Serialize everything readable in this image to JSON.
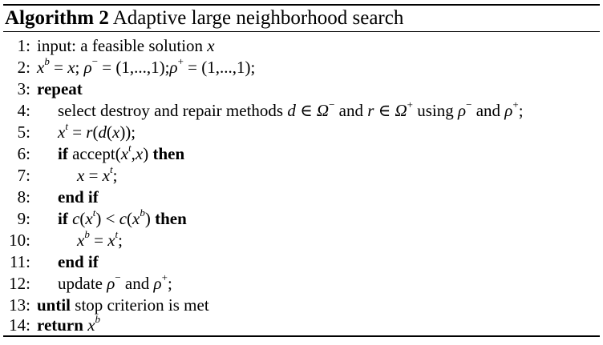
{
  "caption": {
    "label": "Algorithm 2",
    "title": "Adaptive large neighborhood search"
  },
  "lines": [
    {
      "num": "1:",
      "parts": [
        "input: a feasible solution ",
        "x"
      ]
    },
    {
      "num": "2:",
      "parts": [
        "x",
        "b",
        " = ",
        "x",
        "; ",
        "ρ",
        "−",
        " = (1,...,1);",
        "ρ",
        "+",
        " = (1,...,1);"
      ]
    },
    {
      "num": "3:",
      "parts": [
        "repeat"
      ]
    },
    {
      "num": "4:",
      "parts": [
        "select destroy and repair methods ",
        "d",
        " ∈ ",
        "Ω",
        "−",
        " and ",
        "r",
        " ∈ ",
        "Ω",
        "+",
        " using ",
        "ρ",
        "−",
        " and ",
        "ρ",
        "+",
        ";"
      ]
    },
    {
      "num": "5:",
      "parts": [
        "x",
        "t",
        " = ",
        "r",
        "(",
        "d",
        "(",
        "x",
        "));"
      ]
    },
    {
      "num": "6:",
      "parts": [
        "if",
        " accept(",
        "x",
        "t",
        ",",
        "x",
        ") ",
        "then"
      ]
    },
    {
      "num": "7:",
      "parts": [
        "x",
        " = ",
        "x",
        "t",
        ";"
      ]
    },
    {
      "num": "8:",
      "parts": [
        "end if"
      ]
    },
    {
      "num": "9:",
      "parts": [
        "if",
        " ",
        "c",
        "(",
        "x",
        "t",
        ") < ",
        "c",
        "(",
        "x",
        "b",
        ") ",
        "then"
      ]
    },
    {
      "num": "10:",
      "parts": [
        "x",
        "b",
        " = ",
        "x",
        "t",
        ";"
      ]
    },
    {
      "num": "11:",
      "parts": [
        "end if"
      ]
    },
    {
      "num": "12:",
      "parts": [
        "update ",
        "ρ",
        "−",
        " and ",
        "ρ",
        "+",
        ";"
      ]
    },
    {
      "num": "13:",
      "parts": [
        "until",
        " stop criterion is met"
      ]
    },
    {
      "num": "14:",
      "parts": [
        "return",
        " ",
        "x",
        "b"
      ]
    }
  ]
}
